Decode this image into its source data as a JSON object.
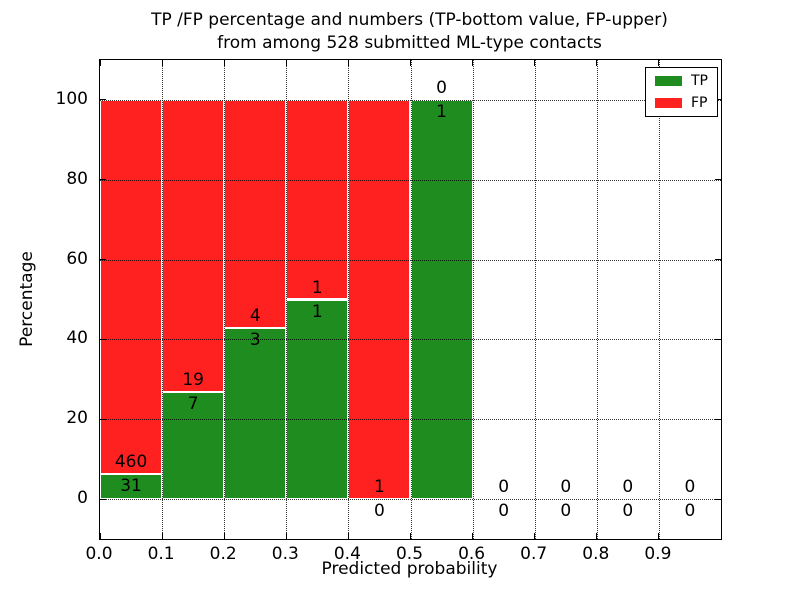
{
  "chart_data": {
    "type": "bar",
    "subtype": "stacked-percentage-histogram",
    "title_lines": [
      "TP /FP percentage and numbers (TP-bottom value, FP-upper)",
      "from among 528 submitted ML-type contacts"
    ],
    "xlabel": "Predicted probability",
    "ylabel": "Percentage",
    "total_submitted": 528,
    "bins": [
      {
        "range": [
          0.0,
          0.1
        ],
        "tp": 31,
        "fp": 460
      },
      {
        "range": [
          0.1,
          0.2
        ],
        "tp": 7,
        "fp": 19
      },
      {
        "range": [
          0.2,
          0.3
        ],
        "tp": 3,
        "fp": 4
      },
      {
        "range": [
          0.3,
          0.4
        ],
        "tp": 1,
        "fp": 1
      },
      {
        "range": [
          0.4,
          0.5
        ],
        "tp": 0,
        "fp": 1
      },
      {
        "range": [
          0.5,
          0.6
        ],
        "tp": 1,
        "fp": 0
      },
      {
        "range": [
          0.6,
          0.7
        ],
        "tp": 0,
        "fp": 0
      },
      {
        "range": [
          0.7,
          0.8
        ],
        "tp": 0,
        "fp": 0
      },
      {
        "range": [
          0.8,
          0.9
        ],
        "tp": 0,
        "fp": 0
      },
      {
        "range": [
          0.9,
          1.0
        ],
        "tp": 0,
        "fp": 0
      }
    ],
    "tp_percent_of_bin": [
      6.3,
      26.9,
      42.9,
      50.0,
      0.0,
      100.0,
      null,
      null,
      null,
      null
    ],
    "series": [
      {
        "name": "TP",
        "color": "#1e8c1e"
      },
      {
        "name": "FP",
        "color": "#ff2020"
      }
    ],
    "xticks": [
      "0.0",
      "0.1",
      "0.2",
      "0.3",
      "0.4",
      "0.5",
      "0.6",
      "0.7",
      "0.8",
      "0.9"
    ],
    "yticks": [
      "0",
      "20",
      "40",
      "60",
      "80",
      "100"
    ],
    "xlim": [
      0,
      1
    ],
    "ylim": [
      -10,
      110
    ],
    "grid": "dotted",
    "legend": {
      "position": "upper-right",
      "entries": [
        "TP",
        "FP"
      ]
    }
  },
  "colors": {
    "tp_green": "#1e8c1e",
    "fp_red": "#ff2020",
    "grid": "#000000",
    "background": "#ffffff"
  }
}
